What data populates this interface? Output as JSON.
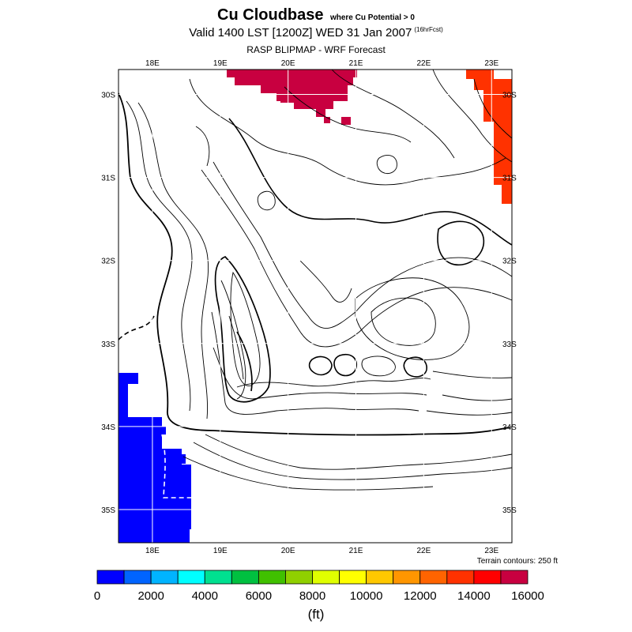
{
  "title": {
    "main": "Cu Cloudbase",
    "qualifier": "where Cu Potential > 0",
    "valid": "Valid 1400 LST [1200Z] WED 31 Jan 2007",
    "fcst": "(16hrFcst)",
    "subtitle": "RASP BLIPMAP - WRF Forecast"
  },
  "axes": {
    "top_lon": [
      "18E",
      "19E",
      "20E",
      "21E",
      "22E",
      "23E"
    ],
    "bottom_lon": [
      "18E",
      "19E",
      "20E",
      "21E",
      "22E",
      "23E"
    ],
    "left_lat": [
      "30S",
      "31S",
      "32S",
      "33S",
      "34S",
      "35S"
    ],
    "right_lat": [
      "30S",
      "31S",
      "32S",
      "33S",
      "34S",
      "35S"
    ]
  },
  "terrain_note": "Terrain contours: 250 ft",
  "colorbar": {
    "colors": [
      "#0000ff",
      "#0064ff",
      "#00b4ff",
      "#00ffff",
      "#00e090",
      "#00c040",
      "#40c000",
      "#90d000",
      "#e0ff00",
      "#ffff00",
      "#ffc800",
      "#ff9600",
      "#ff6400",
      "#ff3200",
      "#ff0000",
      "#c80040"
    ],
    "tick_labels": [
      "0",
      "2000",
      "4000",
      "6000",
      "8000",
      "10000",
      "12000",
      "14000",
      "16000"
    ],
    "units": "(ft)"
  },
  "chart_data": {
    "type": "heatmap",
    "title": "Cu Cloudbase",
    "variable": "cumulus cloudbase height where Cu Potential > 0",
    "units": "ft",
    "scale_range": [
      0,
      16000
    ],
    "lon_range_deg_E": [
      17.5,
      23.3
    ],
    "lat_range_deg_S": [
      29.7,
      35.4
    ],
    "regions": [
      {
        "area": "northern coast near 19.4E–21.3E, 29.8S–30.5S",
        "cloudbase_ft": 15000
      },
      {
        "area": "northern core near 20.3E, 30.1S",
        "cloudbase_ft": 16000
      },
      {
        "area": "north-east near 22.8E–23.2E, 29.8S–31.4S",
        "cloudbase_ft": 13000
      },
      {
        "area": "south-west coast near 17.6E–18.8E, 33.4S–35.3S",
        "cloudbase_ft": 0
      }
    ]
  }
}
